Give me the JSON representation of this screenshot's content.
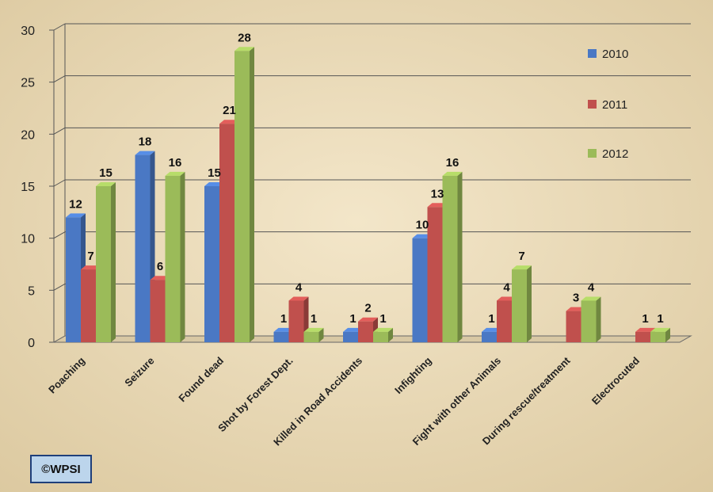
{
  "chart_data": {
    "type": "bar",
    "categories": [
      "Poaching",
      "Seizure",
      "Found dead",
      "Shot by Forest Dept.",
      "Killed in Road Accidents",
      "Infighting",
      "Fight with other Animals",
      "During rescue/treatment",
      "Electrocuted"
    ],
    "series": [
      {
        "name": "2010",
        "color": "#4a78c4",
        "values": [
          12,
          18,
          15,
          1,
          1,
          10,
          1,
          null,
          null
        ]
      },
      {
        "name": "2011",
        "color": "#c0504d",
        "values": [
          7,
          6,
          21,
          4,
          2,
          13,
          4,
          3,
          1
        ]
      },
      {
        "name": "2012",
        "color": "#9bbb59",
        "values": [
          15,
          16,
          28,
          1,
          1,
          16,
          7,
          4,
          1
        ]
      }
    ],
    "ylim": [
      0,
      30
    ],
    "yticks": [
      0,
      5,
      10,
      15,
      20,
      25,
      30
    ],
    "grid": true,
    "legend_position": "right"
  },
  "watermark": "©WPSI"
}
